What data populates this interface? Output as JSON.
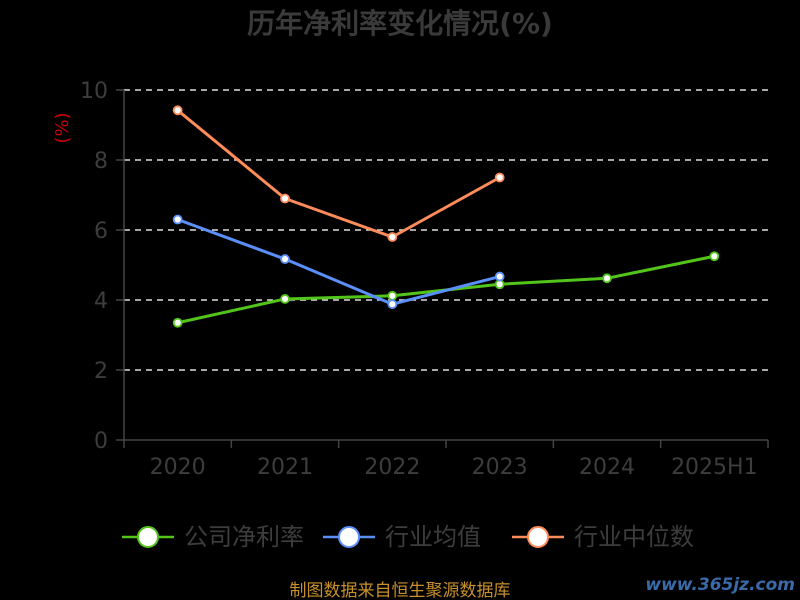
{
  "chart_data": {
    "type": "line",
    "title": "历年净利率变化情况(%)",
    "ylabel": "(%)",
    "xlabel": "",
    "categories": [
      "2020",
      "2021",
      "2022",
      "2023",
      "2024",
      "2025H1"
    ],
    "ylim": [
      0,
      10
    ],
    "yticks": [
      "0",
      "2",
      "4",
      "6",
      "8",
      "10"
    ],
    "grid": true,
    "legend_position": "bottom",
    "series": [
      {
        "name": "公司净利率",
        "color": "#52c41a",
        "values": [
          3.35,
          4.03,
          4.12,
          4.45,
          4.62,
          5.25
        ]
      },
      {
        "name": "行业均值",
        "color": "#5b8ff9",
        "values": [
          6.3,
          5.17,
          3.88,
          4.67,
          null,
          null
        ]
      },
      {
        "name": "行业中位数",
        "color": "#ff8c5a",
        "values": [
          9.42,
          6.9,
          5.8,
          7.5,
          null,
          null
        ]
      }
    ]
  },
  "source": "制图数据来自恒生聚源数据库",
  "watermark": "www.365jz.com"
}
